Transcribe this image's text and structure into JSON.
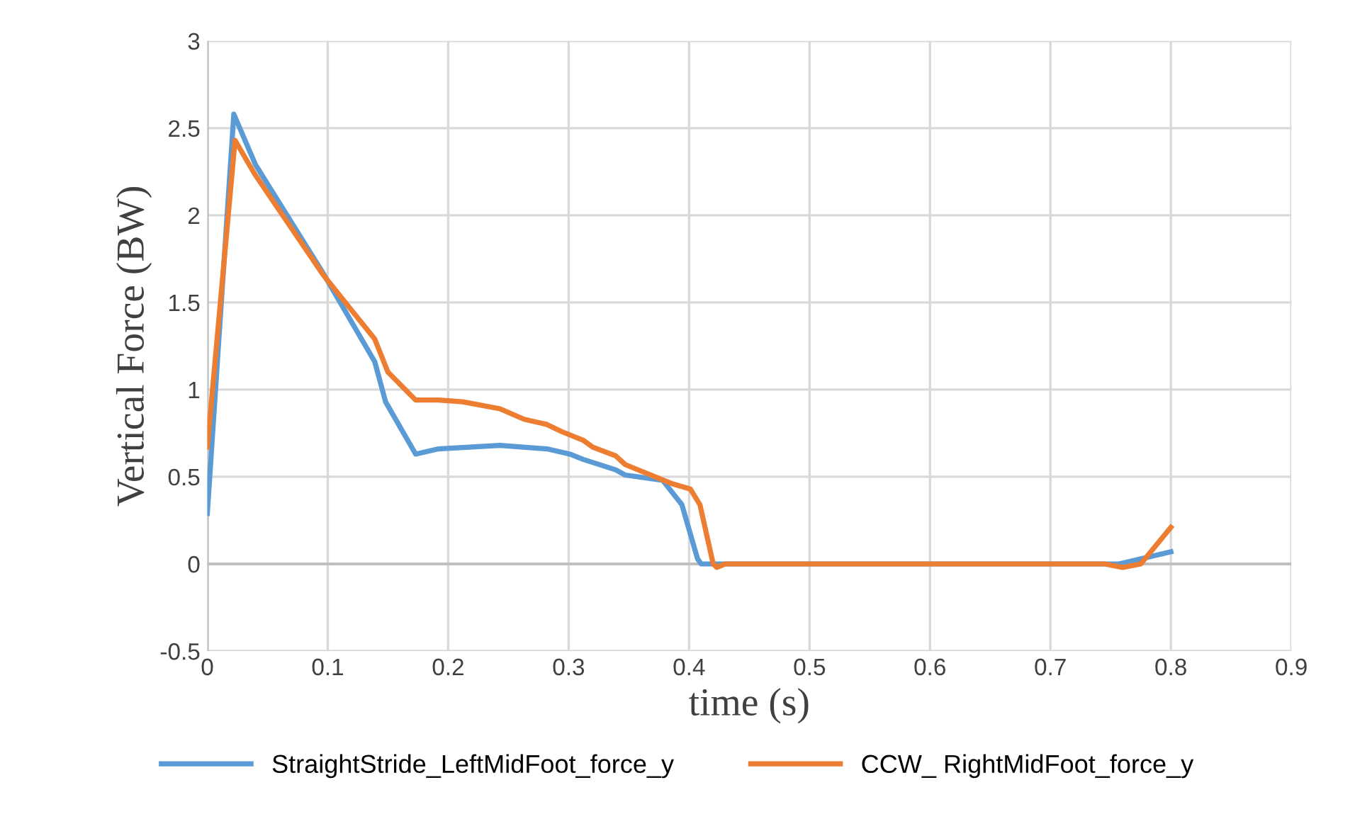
{
  "chart_data": {
    "type": "line",
    "xlabel": "time (s)",
    "ylabel": "Vertical Force (BW)",
    "xlim": [
      0,
      0.9
    ],
    "ylim": [
      -0.5,
      3
    ],
    "xticks": [
      0,
      0.1,
      0.2,
      0.3,
      0.4,
      0.5,
      0.6,
      0.7,
      0.8,
      0.9
    ],
    "yticks": [
      -0.5,
      0,
      0.5,
      1,
      1.5,
      2,
      2.5,
      3
    ],
    "grid": true,
    "legend": "bottom",
    "marker": "none",
    "line_style": "solid",
    "series": [
      {
        "name": "StraightStride_LeftMidFoot_force_y",
        "color": "#5b9bd5",
        "x": [
          0,
          0.022,
          0.04,
          0.096,
          0.139,
          0.148,
          0.173,
          0.192,
          0.243,
          0.282,
          0.301,
          0.312,
          0.339,
          0.347,
          0.378,
          0.394,
          0.407,
          0.41,
          0.5,
          0.6,
          0.7,
          0.757,
          0.8
        ],
        "values": [
          0.29,
          2.58,
          2.29,
          1.67,
          1.16,
          0.93,
          0.63,
          0.66,
          0.68,
          0.66,
          0.63,
          0.6,
          0.54,
          0.51,
          0.48,
          0.34,
          0.03,
          0,
          0,
          0,
          0,
          0,
          0.07
        ]
      },
      {
        "name": "CCW_ RightMidFoot_force_y",
        "color": "#ed7d31",
        "x": [
          0,
          0.023,
          0.039,
          0.096,
          0.139,
          0.15,
          0.173,
          0.192,
          0.212,
          0.243,
          0.263,
          0.282,
          0.294,
          0.312,
          0.32,
          0.339,
          0.347,
          0.386,
          0.401,
          0.409,
          0.42,
          0.423,
          0.43,
          0.5,
          0.6,
          0.7,
          0.745,
          0.76,
          0.775,
          0.8
        ],
        "values": [
          0.67,
          2.43,
          2.24,
          1.66,
          1.29,
          1.1,
          0.94,
          0.94,
          0.93,
          0.89,
          0.83,
          0.8,
          0.76,
          0.71,
          0.67,
          0.62,
          0.57,
          0.46,
          0.43,
          0.34,
          0,
          -0.02,
          0,
          0,
          0,
          0,
          0,
          -0.02,
          0,
          0.21
        ]
      }
    ]
  }
}
